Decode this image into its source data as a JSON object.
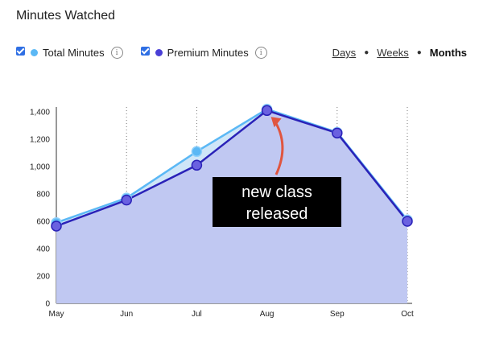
{
  "title": "Minutes Watched",
  "legend": [
    {
      "label": "Total Minutes",
      "color": "#5bb8f5",
      "checked": true,
      "info_icon": "info-icon"
    },
    {
      "label": "Premium Minutes",
      "color": "#4a3fd6",
      "checked": true,
      "info_icon": "info-icon"
    }
  ],
  "range": {
    "options": [
      "Days",
      "Weeks",
      "Months"
    ],
    "selected": "Months"
  },
  "annotation": {
    "text_line1": "new class",
    "text_line2": "released",
    "points_to": "Aug"
  },
  "chart_data": {
    "type": "area",
    "categories": [
      "May",
      "Jun",
      "Jul",
      "Aug",
      "Sep",
      "Oct"
    ],
    "ylim": [
      0,
      1400
    ],
    "yticks": [
      0,
      200,
      400,
      600,
      800,
      "1,000",
      "1,200",
      "1,400"
    ],
    "series": [
      {
        "name": "Total Minutes",
        "color": "#5bb8f5",
        "values": [
          590,
          770,
          1110,
          1420,
          1250,
          610
        ]
      },
      {
        "name": "Premium Minutes",
        "color": "#4a3fd6",
        "values": [
          565,
          755,
          1010,
          1410,
          1245,
          600
        ]
      }
    ],
    "grid": "vertical dotted",
    "legend_position": "top-left"
  }
}
